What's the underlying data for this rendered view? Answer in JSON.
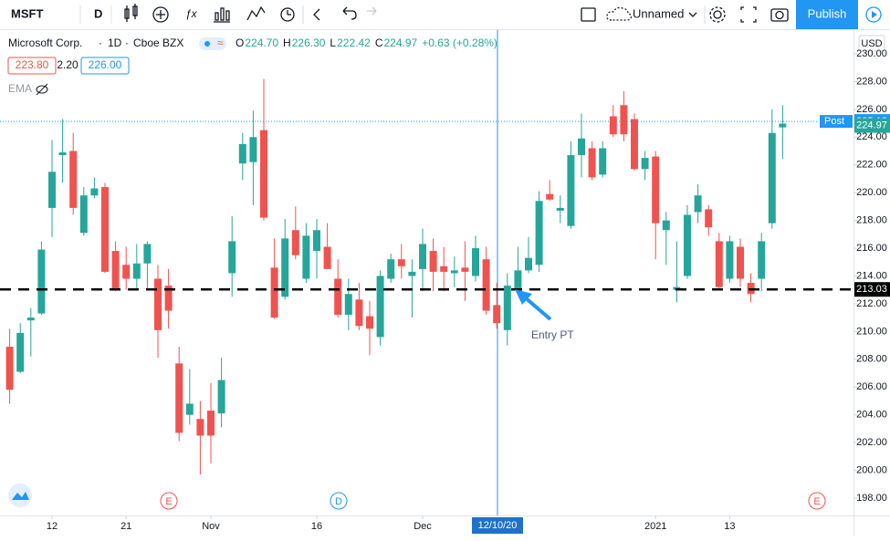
{
  "toolbar": {
    "symbol": "MSFT",
    "interval": "D",
    "layout_name": "Unnamed",
    "publish": "Publish"
  },
  "legend": {
    "name": "Microsoft Corp.",
    "interval": "1D",
    "exchange": "Cboe BZX",
    "ohlc": [
      {
        "key": "O",
        "value": "224.70"
      },
      {
        "key": "H",
        "value": "226.30"
      },
      {
        "key": "L",
        "value": "222.42"
      },
      {
        "key": "C",
        "value": "224.97"
      }
    ],
    "change": "+0.63 (+0.28%)",
    "bid": "223.80",
    "spread": "2.20",
    "ask": "226.00",
    "indicator": "EMA"
  },
  "chart_data": {
    "type": "candlestick",
    "currency": "USD",
    "up_color": "#26a69a",
    "down_color": "#ef5350",
    "categories": [
      null,
      null,
      null,
      null,
      "12",
      null,
      null,
      null,
      null,
      null,
      null,
      "21",
      null,
      null,
      null,
      null,
      null,
      null,
      null,
      "Nov",
      null,
      null,
      null,
      null,
      null,
      null,
      null,
      null,
      null,
      "16",
      null,
      null,
      null,
      null,
      null,
      null,
      null,
      null,
      null,
      "Dec",
      null,
      null,
      null,
      null,
      null,
      null,
      null,
      null,
      null,
      null,
      null,
      null,
      null,
      null,
      null,
      null,
      null,
      null,
      null,
      null,
      null,
      "2021",
      null,
      null,
      null,
      null,
      null,
      null,
      "13",
      null,
      null,
      null,
      null,
      null
    ],
    "open": [
      208.9,
      207.1,
      210.8,
      211.3,
      218.9,
      222.7,
      223.0,
      217.1,
      219.8,
      220.4,
      215.8,
      214.8,
      213.8,
      214.9,
      213.8,
      213.3,
      207.7,
      204.0,
      203.7,
      204.3,
      204.1,
      214.2,
      222.1,
      222.2,
      224.5,
      214.6,
      212.5,
      217.3,
      213.8,
      215.8,
      216.1,
      213.8,
      211.2,
      212.3,
      211.1,
      209.6,
      213.8,
      215.2,
      214.0,
      214.5,
      215.8,
      214.7,
      214.2,
      214.6,
      214.0,
      215.2,
      211.9,
      210.1,
      213.0,
      214.4,
      214.8,
      219.9,
      218.7,
      217.6,
      222.7,
      223.2,
      221.3,
      225.5,
      226.3,
      225.3,
      221.7,
      222.6,
      217.3,
      213.0,
      214.0,
      218.6,
      218.8,
      216.5,
      213.8,
      216.1,
      213.5,
      213.8,
      217.8,
      224.7
    ],
    "high": [
      210.2,
      210.6,
      211.7,
      216.5,
      223.8,
      225.3,
      224.3,
      220.4,
      221.1,
      220.7,
      216.5,
      216.1,
      216.3,
      216.5,
      214.8,
      214.5,
      208.9,
      207.3,
      205.0,
      206.3,
      208.1,
      218.3,
      224.3,
      225.9,
      228.2,
      216.7,
      218.1,
      219.0,
      217.8,
      218.1,
      217.8,
      215.2,
      213.8,
      213.5,
      212.2,
      214.4,
      215.6,
      216.3,
      215.2,
      217.4,
      216.7,
      216.1,
      215.4,
      216.5,
      216.9,
      216.1,
      213.5,
      214.2,
      216.1,
      216.8,
      220.1,
      220.9,
      219.8,
      223.7,
      225.7,
      223.7,
      223.7,
      226.3,
      227.3,
      225.7,
      223.0,
      223.0,
      218.6,
      216.5,
      219.1,
      220.6,
      219.1,
      217.1,
      216.9,
      216.7,
      214.2,
      217.1,
      226.0,
      226.3
    ],
    "low": [
      204.8,
      207.0,
      208.2,
      211.2,
      216.8,
      220.7,
      218.4,
      216.9,
      219.6,
      214.2,
      212.9,
      213.0,
      213.0,
      213.0,
      208.1,
      210.2,
      202.1,
      203.3,
      199.7,
      200.5,
      203.1,
      212.5,
      220.9,
      219.1,
      218.0,
      210.9,
      212.3,
      215.2,
      213.5,
      213.8,
      214.5,
      211.0,
      210.1,
      210.1,
      208.3,
      209.0,
      213.5,
      213.8,
      211.0,
      212.9,
      212.9,
      212.9,
      213.2,
      212.2,
      213.6,
      211.2,
      210.2,
      209.0,
      212.9,
      214.2,
      214.3,
      219.4,
      217.8,
      217.4,
      221.1,
      220.9,
      221.1,
      224.0,
      223.7,
      221.6,
      220.9,
      215.2,
      214.8,
      212.1,
      213.8,
      217.8,
      216.9,
      213.0,
      213.5,
      213.2,
      212.1,
      212.9,
      217.4,
      222.42
    ],
    "close": [
      205.8,
      209.9,
      211.0,
      215.9,
      221.5,
      222.9,
      218.9,
      219.8,
      220.3,
      214.3,
      213.0,
      213.8,
      214.9,
      216.3,
      210.1,
      211.5,
      202.7,
      204.8,
      202.5,
      202.5,
      206.5,
      216.5,
      223.5,
      224.0,
      218.2,
      211.0,
      216.7,
      215.5,
      216.9,
      217.3,
      214.5,
      211.2,
      212.7,
      210.4,
      210.2,
      214.0,
      215.2,
      214.7,
      214.3,
      216.3,
      214.3,
      214.3,
      214.4,
      214.3,
      216.0,
      211.5,
      210.6,
      213.3,
      214.4,
      215.3,
      219.4,
      219.5,
      218.9,
      222.7,
      223.9,
      221.1,
      223.2,
      224.2,
      224.2,
      221.7,
      222.5,
      217.8,
      218.0,
      213.2,
      218.4,
      219.8,
      217.5,
      213.2,
      216.5,
      213.8,
      212.7,
      216.5,
      224.3,
      224.97
    ],
    "ylim": [
      196.75,
      231.51
    ],
    "yticks": [
      {
        "value": 198,
        "label": "198.00"
      },
      {
        "value": 200,
        "label": "200.00"
      },
      {
        "value": 202,
        "label": "202.00"
      },
      {
        "value": 204,
        "label": "204.00"
      },
      {
        "value": 206,
        "label": "206.00"
      },
      {
        "value": 208,
        "label": "208.00"
      },
      {
        "value": 210,
        "label": "210.00"
      },
      {
        "value": 212,
        "label": "212.00"
      },
      {
        "value": 214,
        "label": "214.00"
      },
      {
        "value": 216,
        "label": "216.00"
      },
      {
        "value": 218,
        "label": "218.00"
      },
      {
        "value": 220,
        "label": "220.00"
      },
      {
        "value": 222,
        "label": "222.00"
      },
      {
        "value": 224,
        "label": "224.00"
      },
      {
        "value": 226,
        "label": "226.00"
      },
      {
        "value": 228,
        "label": "228.00"
      },
      {
        "value": 230,
        "label": "230.00"
      }
    ],
    "post_line": {
      "name": "Post",
      "value": 225.13,
      "color": "#2196f3"
    },
    "last_price": {
      "value": 224.97
    },
    "horizontal_line": {
      "value": 213.03,
      "color": "#000000"
    },
    "annotation": "Entry PT",
    "crosshair_label": "12/10/20",
    "events": [
      "E",
      "D",
      "E"
    ]
  }
}
